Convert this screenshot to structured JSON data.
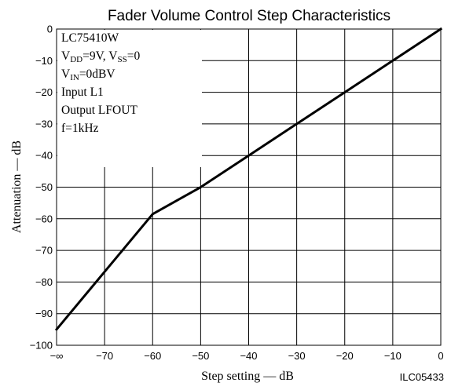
{
  "chart_data": {
    "type": "line",
    "title": "Fader Volume Control Step Characteristics",
    "xlabel": "Step setting — dB",
    "ylabel": "Attenuation — dB",
    "xlim": [
      -80,
      0
    ],
    "ylim": [
      -100,
      0
    ],
    "grid": true,
    "x_ticks": [
      {
        "value": -80,
        "label": "−∞"
      },
      {
        "value": -70,
        "label": "−70"
      },
      {
        "value": -60,
        "label": "−60"
      },
      {
        "value": -50,
        "label": "−50"
      },
      {
        "value": -40,
        "label": "−40"
      },
      {
        "value": -30,
        "label": "−30"
      },
      {
        "value": -20,
        "label": "−20"
      },
      {
        "value": -10,
        "label": "−10"
      },
      {
        "value": 0,
        "label": "0"
      }
    ],
    "y_ticks": [
      {
        "value": 0,
        "label": "0"
      },
      {
        "value": -10,
        "label": "−10"
      },
      {
        "value": -20,
        "label": "−20"
      },
      {
        "value": -30,
        "label": "−30"
      },
      {
        "value": -40,
        "label": "−40"
      },
      {
        "value": -50,
        "label": "−50"
      },
      {
        "value": -60,
        "label": "−60"
      },
      {
        "value": -70,
        "label": "−70"
      },
      {
        "value": -80,
        "label": "−80"
      },
      {
        "value": -90,
        "label": "−90"
      },
      {
        "value": -100,
        "label": "−100"
      }
    ],
    "series": [
      {
        "x": [
          -80,
          -60,
          -50,
          -40,
          -30,
          -20,
          -10,
          0
        ],
        "y": [
          -95,
          -58.5,
          -50,
          -40,
          -30,
          -20,
          -10,
          0
        ],
        "color": "#000000"
      }
    ],
    "conditions": [
      [
        {
          "t": "LC75410W"
        }
      ],
      [
        {
          "t": "V"
        },
        {
          "t": "DD",
          "sub": true
        },
        {
          "t": "=9V, V"
        },
        {
          "t": "SS",
          "sub": true
        },
        {
          "t": "=0"
        }
      ],
      [
        {
          "t": "V"
        },
        {
          "t": "IN",
          "sub": true
        },
        {
          "t": "=0dBV"
        }
      ],
      [
        {
          "t": "Input L1"
        }
      ],
      [
        {
          "t": "Output LFOUT"
        }
      ],
      [
        {
          "t": "f=1kHz"
        }
      ]
    ],
    "figure_id": "ILC05433"
  },
  "colors": {
    "line": "#000000",
    "grid": "#000000",
    "background": "#ffffff"
  }
}
